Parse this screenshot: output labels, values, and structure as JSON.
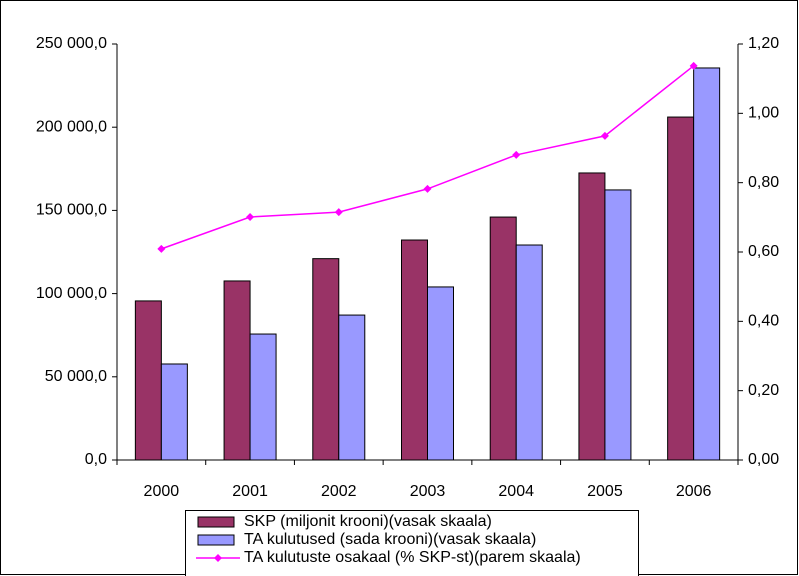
{
  "chart_data": {
    "type": "bar",
    "categories": [
      "2000",
      "2001",
      "2002",
      "2003",
      "2004",
      "2005",
      "2006"
    ],
    "series": [
      {
        "name": "SKP (miljonit krooni)(vasak skaala)",
        "color": "#993366",
        "type": "bar",
        "axis": "y",
        "values": [
          95600,
          107600,
          121000,
          132200,
          146000,
          172500,
          206100
        ]
      },
      {
        "name": "TA kulutused (sada krooni)(vasak skaala)",
        "color": "#9999ff",
        "type": "bar",
        "axis": "y",
        "values": [
          57700,
          75700,
          87100,
          104000,
          129200,
          162300,
          235600
        ]
      },
      {
        "name": "TA kulutuste osakaal (% SKP-st)(parem skaala)",
        "color": "#ff00ff",
        "type": "line",
        "axis": "y2",
        "values": [
          0.609,
          0.701,
          0.715,
          0.782,
          0.88,
          0.935,
          1.137
        ]
      }
    ],
    "ylim": [
      0,
      250000
    ],
    "yticks": [
      {
        "value": 0,
        "label": "0,0"
      },
      {
        "value": 50000,
        "label": "50 000,0"
      },
      {
        "value": 100000,
        "label": "100 000,0"
      },
      {
        "value": 150000,
        "label": "150 000,0"
      },
      {
        "value": 200000,
        "label": "200 000,0"
      },
      {
        "value": 250000,
        "label": "250 000,0"
      }
    ],
    "y2lim": [
      0,
      1.2
    ],
    "y2ticks": [
      {
        "value": 0,
        "label": "0,00"
      },
      {
        "value": 0.2,
        "label": "0,20"
      },
      {
        "value": 0.4,
        "label": "0,40"
      },
      {
        "value": 0.6,
        "label": "0,60"
      },
      {
        "value": 0.8,
        "label": "0,80"
      },
      {
        "value": 1.0,
        "label": "1,00"
      },
      {
        "value": 1.2,
        "label": "1,20"
      }
    ],
    "grid": false,
    "legend": "bottom"
  }
}
